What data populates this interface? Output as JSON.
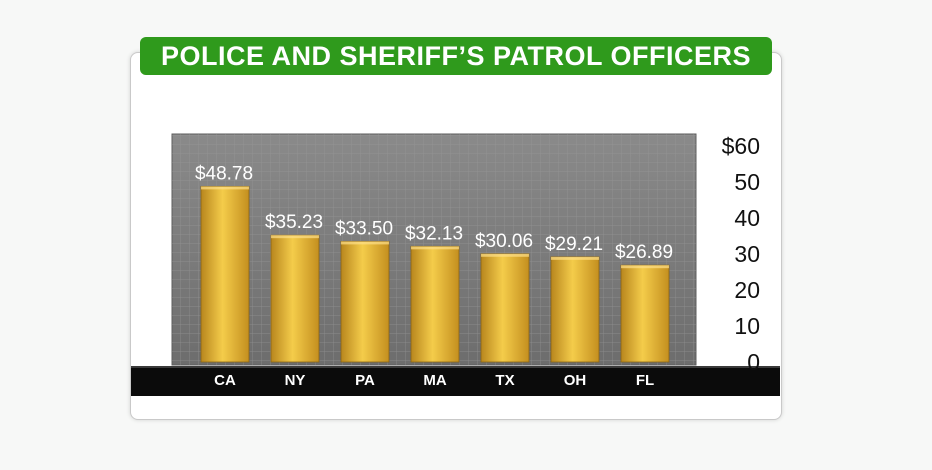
{
  "title": "POLICE AND SHERIFF’S PATROL OFFICERS",
  "colors": {
    "title_bg": "#2f9a1c",
    "plot_bg": "#7d7d7d",
    "bar": "#e8b83a",
    "axis_band": "#0b0b0b"
  },
  "chart_data": {
    "type": "bar",
    "title": "POLICE AND SHERIFF’S PATROL OFFICERS",
    "categories": [
      "CA",
      "NY",
      "PA",
      "MA",
      "TX",
      "OH",
      "FL"
    ],
    "values": [
      48.78,
      35.23,
      33.5,
      32.13,
      30.06,
      29.21,
      26.89
    ],
    "data_labels": [
      "$48.78",
      "$35.23",
      "$33.50",
      "$32.13",
      "$30.06",
      "$29.21",
      "$26.89"
    ],
    "ylim": [
      0,
      60
    ],
    "y_ticks": [
      0,
      10,
      20,
      30,
      40,
      50,
      60
    ],
    "y_tick_labels": [
      "0",
      "10",
      "20",
      "30",
      "40",
      "50",
      "$60"
    ],
    "y_axis_side": "right",
    "grid": true,
    "xlabel": "",
    "ylabel": ""
  }
}
